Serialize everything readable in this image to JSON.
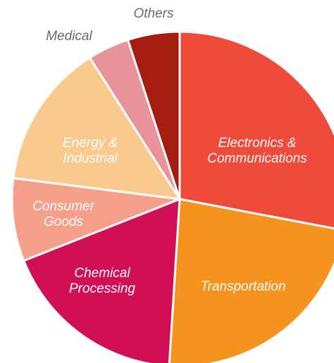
{
  "chart_data": {
    "type": "pie",
    "categories": [
      "Electronics & Communications",
      "Transportation",
      "Chemical Processing",
      "Consumer Goods",
      "Energy & Industrial",
      "Medical",
      "Others"
    ],
    "values": [
      28,
      23,
      18,
      8,
      14,
      4,
      5
    ],
    "colors": [
      "#ef4a3a",
      "#f5931f",
      "#d10f55",
      "#f5a08a",
      "#f9c98d",
      "#e8929a",
      "#a51c10"
    ]
  }
}
